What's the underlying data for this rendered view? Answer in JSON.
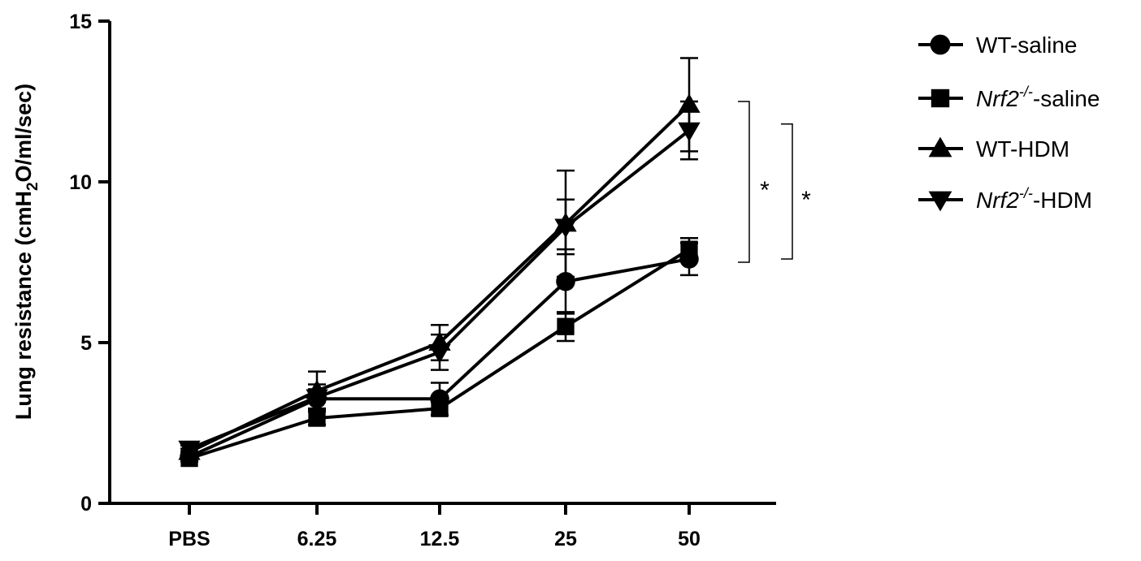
{
  "chart_data": {
    "type": "line",
    "categories": [
      "PBS",
      "6.25",
      "12.5",
      "25",
      "50"
    ],
    "ylabel": "Lung resistance (cmH₂O/ml/sec)",
    "ylabel_parts": {
      "prefix": "Lung resistance (cmH",
      "sub": "2",
      "suffix": "O/ml/sec)"
    },
    "ylim": [
      0,
      15
    ],
    "yticks": [
      "0",
      "5",
      "10",
      "15"
    ],
    "yticks_values": [
      0,
      5,
      10,
      15
    ],
    "legend_position": "right",
    "series": [
      {
        "name": "WT-saline",
        "legend": {
          "main": "WT-saline"
        },
        "marker": "circle",
        "values": [
          1.45,
          3.25,
          3.25,
          6.9,
          7.6
        ],
        "errors": [
          0.1,
          0.3,
          0.5,
          1.0,
          0.5
        ]
      },
      {
        "name": "Nrf2-/--saline",
        "legend": {
          "italic": "Nrf2",
          "sup": "-/-",
          "main": "-saline"
        },
        "marker": "square",
        "values": [
          1.4,
          2.65,
          2.95,
          5.5,
          7.9
        ],
        "errors": [
          0.1,
          0.2,
          0.2,
          0.45,
          0.35
        ]
      },
      {
        "name": "WT-HDM",
        "legend": {
          "main": "WT-HDM"
        },
        "marker": "triangle-up",
        "values": [
          1.6,
          3.5,
          5.0,
          8.7,
          12.4
        ],
        "errors": [
          0.1,
          0.6,
          0.55,
          1.65,
          1.45
        ]
      },
      {
        "name": "Nrf2-/--HDM",
        "legend": {
          "italic": "Nrf2",
          "sup": "-/-",
          "main": "-HDM"
        },
        "marker": "triangle-down",
        "values": [
          1.7,
          3.3,
          4.7,
          8.6,
          11.6
        ],
        "errors": [
          0.1,
          0.4,
          0.55,
          0.85,
          0.9
        ]
      }
    ],
    "significance": [
      {
        "label": "*",
        "from": 12.5,
        "to": 7.5
      },
      {
        "label": "*",
        "from": 11.8,
        "to": 7.6
      }
    ]
  }
}
